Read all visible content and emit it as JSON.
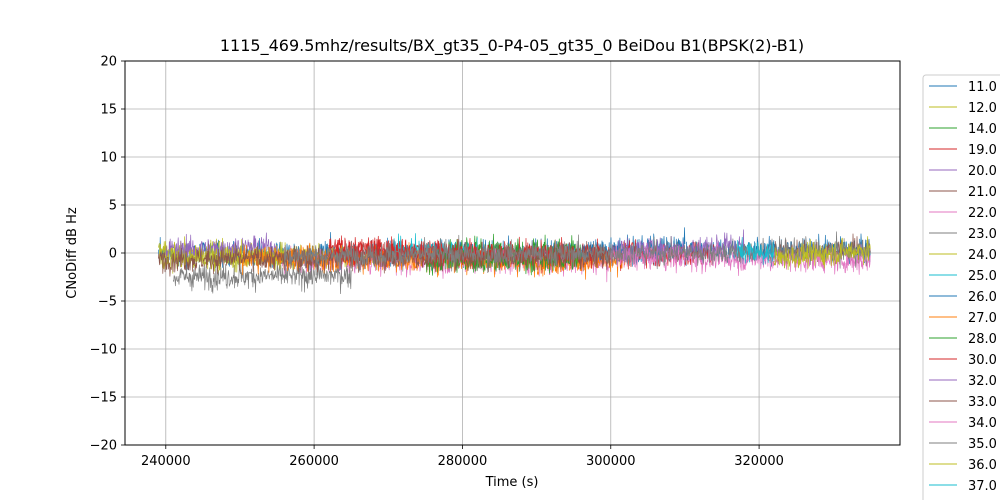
{
  "chart_data": {
    "type": "line",
    "title": "1115_469.5mhz/results/BX_gt35_0-P4-05_gt35_0 BeiDou B1(BPSK(2)-B1)",
    "xlabel": "Time (s)",
    "ylabel": "CNoDiff dB Hz",
    "xlim": [
      234500,
      339000
    ],
    "ylim": [
      -20,
      20
    ],
    "x_ticks": [
      "240000",
      "260000",
      "280000",
      "300000",
      "320000"
    ],
    "y_ticks": [
      "20",
      "15",
      "10",
      "5",
      "0",
      "−5",
      "−10",
      "−15",
      "−20"
    ],
    "grid": true,
    "legend_position": "right-outside",
    "series": [
      {
        "name": "11.0",
        "color": "#1f77b4",
        "x": [
          239000,
          335000
        ],
        "y": [
          -0.2,
          0.3
        ]
      },
      {
        "name": "12.0",
        "color": "#bcbd22",
        "x": [
          239000,
          270000
        ],
        "y": [
          0.2,
          -0.5
        ]
      },
      {
        "name": "14.0",
        "color": "#2ca02c",
        "x": [
          278000,
          296000
        ],
        "y": [
          0.4,
          0.2
        ]
      },
      {
        "name": "19.0",
        "color": "#d62728",
        "x": [
          262000,
          278000
        ],
        "y": [
          0.5,
          0.3
        ]
      },
      {
        "name": "20.0",
        "color": "#9467bd",
        "x": [
          240000,
          255000
        ],
        "y": [
          0.3,
          0.6
        ]
      },
      {
        "name": "21.0",
        "color": "#8c564b",
        "x": [
          322000,
          335000
        ],
        "y": [
          0.1,
          0.3
        ]
      },
      {
        "name": "22.0",
        "color": "#e377c2",
        "x": [
          255000,
          300000
        ],
        "y": [
          -0.8,
          -1.0
        ]
      },
      {
        "name": "23.0",
        "color": "#7f7f7f",
        "x": [
          241000,
          265000
        ],
        "y": [
          -2.5,
          -2.3
        ]
      },
      {
        "name": "24.0",
        "color": "#bcbd22",
        "x": [
          239500,
          259000
        ],
        "y": [
          -0.7,
          -0.4
        ]
      },
      {
        "name": "25.0",
        "color": "#17becf",
        "x": [
          270000,
          282000
        ],
        "y": [
          0.4,
          0.2
        ]
      },
      {
        "name": "26.0",
        "color": "#1f77b4",
        "x": [
          296000,
          310000
        ],
        "y": [
          0.0,
          0.6
        ]
      },
      {
        "name": "27.0",
        "color": "#ff7f0e",
        "x": [
          250000,
          302000
        ],
        "y": [
          -0.5,
          -1.0
        ]
      },
      {
        "name": "28.0",
        "color": "#2ca02c",
        "x": [
          275000,
          296000
        ],
        "y": [
          -0.9,
          -0.7
        ]
      },
      {
        "name": "30.0",
        "color": "#d62728",
        "x": [
          262000,
          314000
        ],
        "y": [
          0.1,
          -0.2
        ]
      },
      {
        "name": "32.0",
        "color": "#9467bd",
        "x": [
          300000,
          318000
        ],
        "y": [
          0.2,
          0.8
        ]
      },
      {
        "name": "33.0",
        "color": "#8c564b",
        "x": [
          239000,
          300000
        ],
        "y": [
          -0.7,
          -0.3
        ]
      },
      {
        "name": "34.0",
        "color": "#e377c2",
        "x": [
          300000,
          335000
        ],
        "y": [
          -0.4,
          -0.8
        ]
      },
      {
        "name": "35.0",
        "color": "#7f7f7f",
        "x": [
          256000,
          335000
        ],
        "y": [
          -0.3,
          0.2
        ]
      },
      {
        "name": "36.0",
        "color": "#bcbd22",
        "x": [
          322000,
          335000
        ],
        "y": [
          -0.6,
          0.4
        ]
      },
      {
        "name": "37.0",
        "color": "#17becf",
        "x": [
          317000,
          322000
        ],
        "y": [
          0.2,
          0.0
        ]
      }
    ]
  }
}
